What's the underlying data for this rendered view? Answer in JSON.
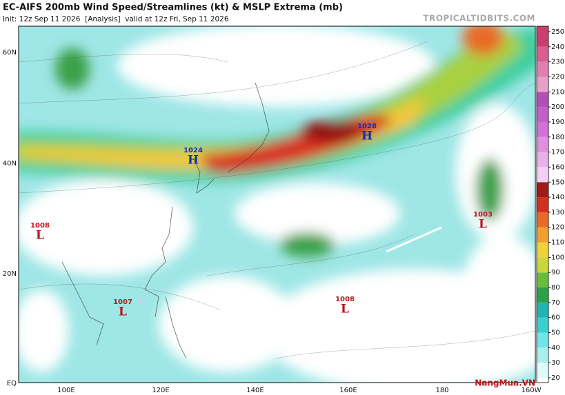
{
  "header": {
    "title": "EC-AIFS 200mb Wind Speed/Streamlines (kt) & MSLP Extrema (mb)",
    "subtitle": "Init: 12z Sep 11 2026  [Analysis]  valid at 12z Fri, Sep 11 2026",
    "site": "TROPICALTIDBITS.COM"
  },
  "map": {
    "lat_labels": [
      "60N",
      "40N",
      "20N",
      "EQ"
    ],
    "lon_labels": [
      "100E",
      "120E",
      "140E",
      "160E",
      "180",
      "160W"
    ],
    "pressure_centers": [
      {
        "value": 1024,
        "symbol": "H"
      },
      {
        "value": 1028,
        "symbol": "H"
      },
      {
        "value": 1008,
        "symbol": "L"
      },
      {
        "value": 1007,
        "symbol": "L"
      },
      {
        "value": 1008,
        "symbol": "L"
      },
      {
        "value": 1003,
        "symbol": "L"
      }
    ]
  },
  "colorbar": {
    "ticks": [
      20,
      30,
      40,
      50,
      60,
      70,
      80,
      90,
      100,
      110,
      120,
      130,
      140,
      150,
      160,
      170,
      180,
      190,
      200,
      210,
      220,
      230,
      240,
      250
    ],
    "colors": [
      "#dffafa",
      "#a8f0f0",
      "#6ee6e6",
      "#3ccfcf",
      "#1fb5b0",
      "#2ea04a",
      "#6abd3a",
      "#c8d83a",
      "#f2d23a",
      "#f0a030",
      "#e86a28",
      "#d23020",
      "#a01a18",
      "#f5d0f5",
      "#eab0ea",
      "#df90df",
      "#d070d8",
      "#c060c8",
      "#b050b8",
      "#e8a0c8",
      "#e080b0",
      "#d86090",
      "#c84070"
    ]
  },
  "watermark": "NangMua.VN"
}
